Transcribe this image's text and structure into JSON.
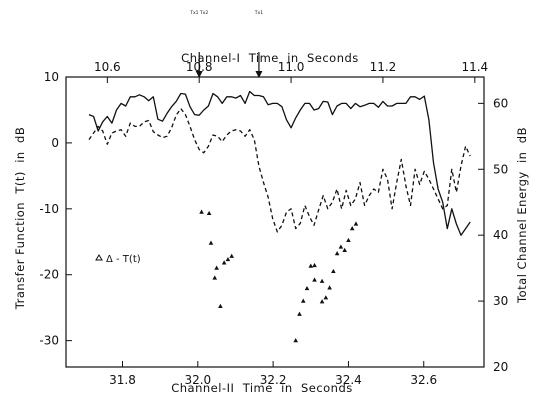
{
  "chart_data": {
    "type": "line",
    "top_axis": {
      "label": "Channel-I  Time  in  Seconds",
      "range": [
        10.51,
        11.42
      ],
      "ticks": [
        10.6,
        10.8,
        11.0,
        11.2,
        11.4
      ],
      "tick_labels": [
        "10.6",
        "10.8",
        "11.0",
        "11.2",
        "11.4"
      ]
    },
    "bottom_axis": {
      "label": "Channel-II  Time  in  Seconds",
      "range": [
        31.65,
        32.76
      ],
      "ticks": [
        31.8,
        32.0,
        32.2,
        32.4,
        32.6
      ],
      "tick_labels": [
        "31.8",
        "32.0",
        "32.2",
        "32.4",
        "32.6"
      ]
    },
    "left_axis": {
      "label": "Transfer Function  T(t)  in  dB",
      "range": [
        -34,
        10
      ],
      "ticks": [
        10,
        0,
        -10,
        -20,
        -30
      ],
      "tick_labels": [
        "10",
        "0",
        "-10",
        "-20",
        "-30"
      ]
    },
    "right_axis": {
      "label": "Total Channel Energy  in  dB",
      "range": [
        20,
        64
      ],
      "ticks": [
        60,
        50,
        40,
        30,
        20
      ],
      "tick_labels": [
        "60",
        "50",
        "40",
        "30",
        "20"
      ]
    },
    "grid": false,
    "markers": [
      {
        "label": "Tx1 Tx2",
        "x": 10.8
      },
      {
        "label": "Tx1",
        "x": 10.93
      }
    ],
    "series": [
      {
        "style": "solid",
        "axes": [
          "top",
          "right"
        ],
        "x": [
          10.56,
          10.57,
          10.58,
          10.59,
          10.6,
          10.61,
          10.62,
          10.63,
          10.64,
          10.65,
          10.66,
          10.67,
          10.68,
          10.69,
          10.7,
          10.71,
          10.72,
          10.73,
          10.74,
          10.75,
          10.76,
          10.77,
          10.78,
          10.79,
          10.8,
          10.81,
          10.82,
          10.83,
          10.84,
          10.85,
          10.86,
          10.87,
          10.88,
          10.89,
          10.9,
          10.91,
          10.92,
          10.93,
          10.94,
          10.95,
          10.96,
          10.97,
          10.98,
          10.99,
          11.0,
          11.01,
          11.02,
          11.03,
          11.04,
          11.05,
          11.06,
          11.07,
          11.08,
          11.09,
          11.1,
          11.11,
          11.12,
          11.13,
          11.14,
          11.15,
          11.16,
          11.17,
          11.18,
          11.19,
          11.2,
          11.21,
          11.22,
          11.23,
          11.24,
          11.25,
          11.26,
          11.27,
          11.28,
          11.29,
          11.3,
          11.31,
          11.32,
          11.33,
          11.34,
          11.35,
          11.36,
          11.37,
          11.38,
          11.39
        ],
        "y": [
          58.3,
          58.0,
          55.8,
          57.2,
          58.0,
          57.0,
          59.0,
          60.0,
          59.6,
          61.0,
          61.0,
          61.3,
          61.0,
          60.4,
          61.0,
          57.6,
          57.3,
          58.5,
          59.5,
          60.3,
          61.5,
          61.4,
          59.5,
          58.3,
          58.2,
          59.0,
          59.6,
          61.5,
          61.0,
          60.0,
          61.0,
          61.0,
          60.8,
          61.2,
          60.0,
          61.8,
          61.2,
          61.2,
          61.0,
          59.8,
          60.0,
          60.0,
          59.5,
          57.5,
          56.3,
          57.8,
          59.0,
          60.0,
          60.0,
          59.0,
          59.2,
          60.3,
          60.2,
          58.3,
          59.6,
          60.0,
          60.0,
          59.2,
          60.0,
          59.5,
          59.7,
          60.0,
          60.0,
          59.4,
          60.3,
          59.6,
          59.6,
          60.0,
          60.0,
          60.0,
          61.0,
          61.0,
          60.6,
          61.1,
          57.5,
          51.0,
          47.0,
          45.0,
          41.0,
          44.0,
          41.7,
          40.0,
          41.0,
          42.0
        ]
      },
      {
        "style": "dashed",
        "axes": [
          "top",
          "right"
        ],
        "x": [
          10.56,
          10.57,
          10.58,
          10.59,
          10.6,
          10.61,
          10.62,
          10.63,
          10.64,
          10.65,
          10.66,
          10.67,
          10.68,
          10.69,
          10.7,
          10.71,
          10.72,
          10.73,
          10.74,
          10.75,
          10.76,
          10.77,
          10.78,
          10.79,
          10.8,
          10.81,
          10.82,
          10.83,
          10.84,
          10.85,
          10.86,
          10.87,
          10.88,
          10.89,
          10.9,
          10.91,
          10.92,
          10.93,
          10.94,
          10.95,
          10.96,
          10.97,
          10.98,
          10.99,
          11.0,
          11.01,
          11.02,
          11.03,
          11.04,
          11.05,
          11.06,
          11.07,
          11.08,
          11.09,
          11.1,
          11.11,
          11.12,
          11.13,
          11.14,
          11.15,
          11.16,
          11.17,
          11.18,
          11.19,
          11.2,
          11.21,
          11.22,
          11.23,
          11.24,
          11.25,
          11.26,
          11.27,
          11.28,
          11.29,
          11.3,
          11.31,
          11.32,
          11.33,
          11.34,
          11.35,
          11.36,
          11.37,
          11.38,
          11.39
        ],
        "y": [
          54.5,
          55.5,
          56.5,
          55.8,
          53.8,
          55.5,
          55.8,
          56.0,
          55.0,
          57.0,
          56.5,
          56.5,
          57.2,
          57.4,
          55.7,
          55.2,
          54.8,
          55.0,
          56.3,
          58.2,
          59.2,
          58.3,
          56.5,
          54.5,
          53.0,
          52.5,
          53.5,
          55.2,
          55.0,
          54.2,
          55.2,
          55.8,
          56.0,
          55.8,
          55.0,
          56.0,
          54.5,
          50.5,
          48.0,
          45.8,
          42.5,
          40.5,
          41.5,
          43.5,
          44.0,
          41.0,
          41.8,
          44.5,
          42.8,
          41.5,
          43.8,
          46.0,
          44.0,
          45.0,
          47.0,
          44.0,
          46.8,
          44.5,
          45.5,
          48.0,
          44.5,
          46.0,
          47.0,
          46.5,
          50.0,
          48.5,
          44.0,
          48.0,
          51.5,
          47.5,
          44.5,
          50.0,
          47.7,
          49.7,
          48.5,
          47.0,
          45.5,
          44.0,
          44.5,
          50.0,
          46.5,
          50.5,
          53.5,
          52.0
        ]
      },
      {
        "style": "markers",
        "legend": "Δ - T(t)",
        "axes": [
          "bottom",
          "left"
        ],
        "x": [
          32.01,
          32.03,
          32.035,
          32.045,
          32.06,
          32.07,
          32.08,
          32.09,
          32.05,
          32.26,
          32.28,
          32.29,
          32.3,
          32.31,
          32.31,
          32.33,
          32.33,
          32.34,
          32.35,
          32.36,
          32.37,
          32.38,
          32.39,
          32.4,
          32.41,
          32.42,
          32.27
        ],
        "y": [
          -10.5,
          -10.7,
          -15.2,
          -20.5,
          -24.8,
          -18.2,
          -17.7,
          -17.2,
          -19.0,
          -30.0,
          -24.0,
          -22.1,
          -18.7,
          -20.8,
          -18.6,
          -24.1,
          -21.0,
          -23.5,
          -22.0,
          -19.5,
          -16.8,
          -15.8,
          -16.3,
          -14.8,
          -13.0,
          -12.3,
          -26.0
        ]
      }
    ]
  }
}
